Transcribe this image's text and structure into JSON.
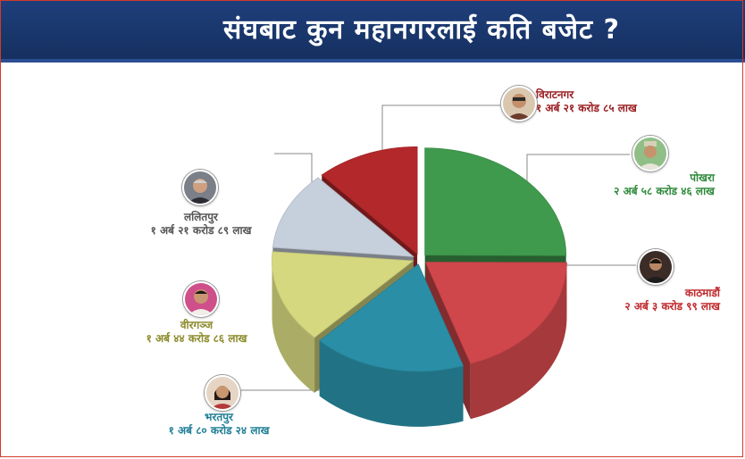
{
  "title": "संघबाट कुन महानगरलाई कति बजेट ?",
  "chart_data": {
    "type": "pie",
    "categories": [
      "विराटनगर",
      "पोखरा",
      "काठमाडौं",
      "भरतपुर",
      "वीरगञ्ज",
      "ललितपुर"
    ],
    "series": [
      {
        "values": [
          1.2185,
          2.5846,
          2.0399,
          1.8024,
          1.4486,
          1.2189
        ],
        "labels": [
          "१ अर्ब २१ करोड ८५ लाख",
          "२ अर्ब ५८ करोड ४६ लाख",
          "२ अर्ब ३ करोड ९९ लाख",
          "१ अर्ब ८० करोड २४ लाख",
          "१ अर्ब ४४ करोड ८६ लाख",
          "१ अर्ब २१ करोड ८९ लाख"
        ]
      }
    ],
    "colors": [
      "#b3282b",
      "#3f9a4d",
      "#d0474b",
      "#2a8fa6",
      "#d6d880",
      "#c6cfdc"
    ],
    "label_colors": [
      "#9b1f23",
      "#2f8a3c",
      "#c0282c",
      "#1f7e96",
      "#8c8a2a",
      "#555555"
    ]
  },
  "labels": {
    "biratnagar": {
      "city": "विराटनगर",
      "amount": "१ अर्ब २१ करोड ८५ लाख"
    },
    "pokhara": {
      "city": "पोखरा",
      "amount": "२ अर्ब ५८ करोड ४६ लाख"
    },
    "kathmandu": {
      "city": "काठमाडौं",
      "amount": "२ अर्ब ३ करोड ९९ लाख"
    },
    "bharatpur": {
      "city": "भरतपुर",
      "amount": "१ अर्ब ८० करोड २४ लाख"
    },
    "birgunj": {
      "city": "वीरगञ्ज",
      "amount": "१ अर्ब ४४ करोड ८६ लाख"
    },
    "lalitpur": {
      "city": "ललितपुर",
      "amount": "१ अर्ब २१ करोड ८९ लाख"
    }
  },
  "colors": {
    "banner": "#1f3f7c",
    "frame": "#d23a2a",
    "connector": "#888888"
  },
  "icons": [
    "portrait-biratnagar-icon",
    "portrait-pokhara-icon",
    "portrait-kathmandu-icon",
    "portrait-bharatpur-icon",
    "portrait-birgunj-icon",
    "portrait-lalitpur-icon"
  ]
}
